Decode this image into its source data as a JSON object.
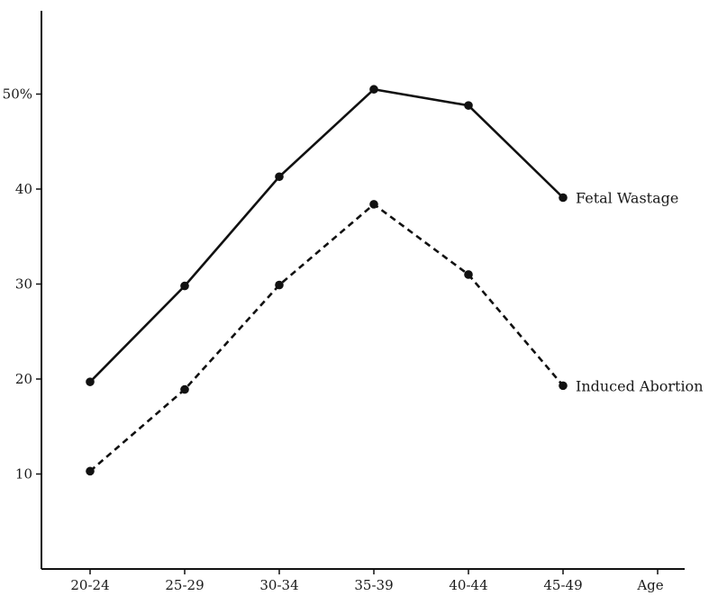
{
  "chart_data": {
    "type": "line",
    "categories": [
      "20-24",
      "25-29",
      "30-34",
      "35-39",
      "40-44",
      "45-49"
    ],
    "xlabel": "Age",
    "ylabel": "",
    "yticks": [
      "10",
      "20",
      "30",
      "40",
      "50%"
    ],
    "ylim": [
      0,
      60
    ],
    "grid": false,
    "series": [
      {
        "name": "Fetal Wastage",
        "values": [
          19.7,
          29.8,
          41.3,
          50.5,
          48.8,
          39.1
        ],
        "style": "solid",
        "color": "#111111"
      },
      {
        "name": "Induced Abortion",
        "values": [
          10.3,
          18.9,
          29.9,
          38.4,
          31.0,
          19.3
        ],
        "style": "dashed",
        "color": "#111111"
      }
    ]
  }
}
